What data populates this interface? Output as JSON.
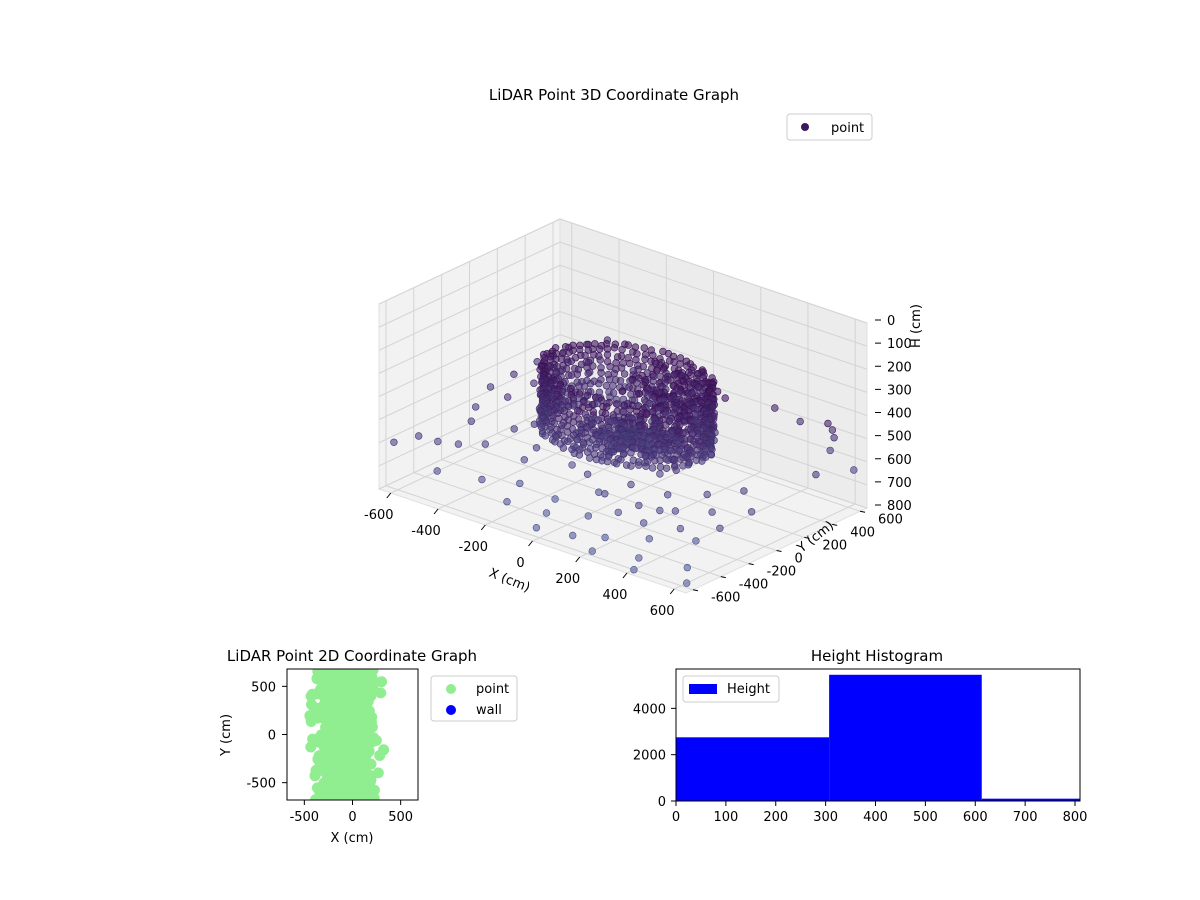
{
  "figure": {
    "background": "#ffffff"
  },
  "chart_data": [
    {
      "type": "scatter",
      "projection": "3d",
      "title": "LiDAR Point 3D Coordinate Graph",
      "xlabel": "X (cm)",
      "ylabel": "Y (cm)",
      "zlabel": "H (cm)",
      "xlim": [
        -650,
        650
      ],
      "ylim": [
        -650,
        650
      ],
      "zlim": [
        800,
        0
      ],
      "xticks": [
        -600,
        -400,
        -200,
        0,
        200,
        400,
        600
      ],
      "yticks": [
        -600,
        -400,
        -200,
        0,
        200,
        400,
        600
      ],
      "zticks": [
        0,
        100,
        200,
        300,
        400,
        500,
        600,
        700,
        800
      ],
      "grid": true,
      "legend": {
        "placement": "upper-right",
        "entries": [
          "point"
        ]
      },
      "series": [
        {
          "name": "point",
          "colormap": "viridis-dark",
          "marker_color": "#3b1a5c",
          "ring": {
            "x_center": -30,
            "y_center": 80,
            "radius": 310,
            "h_top": 300,
            "h_bottom": 560
          },
          "cluster": {
            "x": [
              40,
              330
            ],
            "y": [
              -120,
              180
            ],
            "h": [
              210,
              560
            ]
          },
          "scattered_points": [
            [
              -640,
              -560,
              620
            ],
            [
              -600,
              -450,
              610
            ],
            [
              -560,
              -380,
              640
            ],
            [
              -520,
              -300,
              660
            ],
            [
              -480,
              -520,
              700
            ],
            [
              -430,
              -260,
              640
            ],
            [
              -390,
              -120,
              600
            ],
            [
              -350,
              -420,
              720
            ],
            [
              -300,
              -200,
              680
            ],
            [
              -260,
              -300,
              740
            ],
            [
              -220,
              -460,
              760
            ],
            [
              -180,
              -60,
              700
            ],
            [
              -140,
              -250,
              780
            ],
            [
              -100,
              -380,
              790
            ],
            [
              -60,
              -520,
              800
            ],
            [
              -20,
              -140,
              740
            ],
            [
              30,
              -300,
              780
            ],
            [
              70,
              -480,
              800
            ],
            [
              110,
              -220,
              760
            ],
            [
              160,
              -400,
              800
            ],
            [
              200,
              -560,
              800
            ],
            [
              250,
              -160,
              720
            ],
            [
              300,
              -320,
              780
            ],
            [
              350,
              -480,
              800
            ],
            [
              400,
              -600,
              800
            ],
            [
              450,
              -240,
              760
            ],
            [
              520,
              -420,
              800
            ],
            [
              600,
              -560,
              800
            ],
            [
              620,
              420,
              380
            ],
            [
              580,
              520,
              450
            ],
            [
              540,
              600,
              520
            ],
            [
              640,
              300,
              560
            ],
            [
              500,
              640,
              600
            ],
            [
              420,
              560,
              480
            ],
            [
              360,
              480,
              420
            ],
            [
              600,
              640,
              650
            ],
            [
              -620,
              100,
              560
            ],
            [
              -580,
              200,
              520
            ],
            [
              -540,
              300,
              480
            ],
            [
              -500,
              420,
              460
            ],
            [
              -460,
              520,
              440
            ],
            [
              -420,
              600,
              430
            ],
            [
              -600,
              -40,
              600
            ],
            [
              -560,
              -140,
              620
            ],
            [
              -500,
              20,
              540
            ],
            [
              -460,
              140,
              500
            ],
            [
              -420,
              260,
              470
            ],
            [
              -380,
              380,
              450
            ],
            [
              -340,
              -60,
              580
            ],
            [
              -300,
              60,
              540
            ],
            [
              -260,
              -180,
              620
            ],
            [
              -220,
              200,
              500
            ],
            [
              -180,
              320,
              470
            ],
            [
              -140,
              -100,
              600
            ],
            [
              -100,
              40,
              560
            ],
            [
              -60,
              160,
              520
            ],
            [
              -20,
              -220,
              640
            ],
            [
              20,
              -80,
              620
            ],
            [
              60,
              60,
              580
            ],
            [
              100,
              -300,
              660
            ],
            [
              140,
              -180,
              640
            ],
            [
              180,
              -40,
              620
            ],
            [
              220,
              -260,
              680
            ],
            [
              260,
              -120,
              660
            ],
            [
              300,
              -360,
              700
            ],
            [
              340,
              -200,
              680
            ],
            [
              380,
              -40,
              640
            ],
            [
              420,
              -300,
              700
            ],
            [
              460,
              -140,
              660
            ],
            [
              500,
              20,
              600
            ],
            [
              540,
              -220,
              680
            ],
            [
              580,
              -60,
              640
            ]
          ]
        }
      ]
    },
    {
      "type": "scatter",
      "title": "LiDAR Point 2D Coordinate Graph",
      "xlabel": "X (cm)",
      "ylabel": "Y (cm)",
      "xlim": [
        -680,
        680
      ],
      "ylim": [
        -680,
        680
      ],
      "xticks": [
        -500,
        0,
        500
      ],
      "yticks": [
        -500,
        0,
        500
      ],
      "grid": false,
      "legend": {
        "placement": "outside-right",
        "entries": [
          "point",
          "wall"
        ]
      },
      "series": [
        {
          "name": "point",
          "color": "#90ee90",
          "distribution": {
            "x_center": -80,
            "x_spread": 300,
            "y_range": [
              -680,
              680
            ]
          }
        },
        {
          "name": "wall",
          "color": "#0000ff",
          "points": []
        }
      ]
    },
    {
      "type": "bar",
      "subtype": "histogram",
      "title": "Height Histogram",
      "xlabel": "",
      "ylabel": "",
      "xlim": [
        0,
        810
      ],
      "ylim": [
        0,
        5700
      ],
      "xticks": [
        0,
        100,
        200,
        300,
        400,
        500,
        600,
        700,
        800
      ],
      "yticks": [
        0,
        2000,
        4000
      ],
      "grid": false,
      "legend": {
        "placement": "upper-left",
        "entries": [
          "Height"
        ]
      },
      "bins": [
        {
          "start": 0,
          "end": 307,
          "count": 2750
        },
        {
          "start": 307,
          "end": 613,
          "count": 5450
        },
        {
          "start": 613,
          "end": 810,
          "count": 100
        }
      ],
      "series": [
        {
          "name": "Height",
          "color": "#0000ff"
        }
      ]
    }
  ]
}
